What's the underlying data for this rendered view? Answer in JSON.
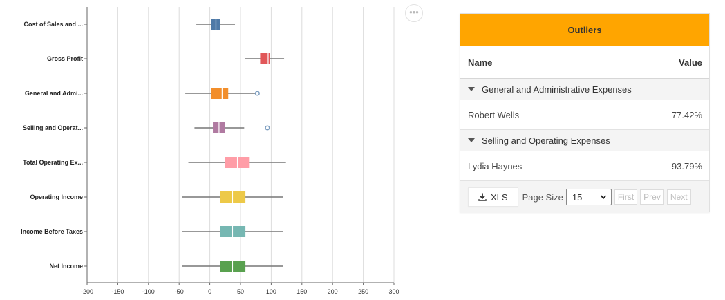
{
  "chart_data": {
    "type": "boxplot",
    "orientation": "horizontal",
    "xlim": [
      -200,
      300
    ],
    "x_ticks": [
      -200,
      -150,
      -100,
      -50,
      0,
      50,
      100,
      150,
      200,
      250,
      300
    ],
    "grid": true,
    "categories": [
      {
        "label": "Cost of Sales and ...",
        "min": -22,
        "q1": 2,
        "median": 10,
        "q3": 17,
        "max": 41,
        "color": "#4e79a7",
        "outliers": []
      },
      {
        "label": "Gross Profit",
        "min": 57,
        "q1": 82,
        "median": 95,
        "q3": 98,
        "max": 121,
        "color": "#e15759",
        "outliers": []
      },
      {
        "label": "General and Admi...",
        "min": -40,
        "q1": 2,
        "median": 20,
        "q3": 30,
        "max": 76,
        "color": "#f28e2b",
        "outliers": [
          77.42
        ]
      },
      {
        "label": "Selling and Operat...",
        "min": -25,
        "q1": 5,
        "median": 15,
        "q3": 25,
        "max": 56,
        "color": "#b07aa1",
        "outliers": [
          93.79
        ]
      },
      {
        "label": "Total Operating Ex...",
        "min": -35,
        "q1": 25,
        "median": 45,
        "q3": 65,
        "max": 124,
        "color": "#ff9da7",
        "outliers": []
      },
      {
        "label": "Operating Income",
        "min": -45,
        "q1": 17,
        "median": 37,
        "q3": 58,
        "max": 119,
        "color": "#edc948",
        "outliers": []
      },
      {
        "label": "Income Before Taxes",
        "min": -45,
        "q1": 17,
        "median": 37,
        "q3": 58,
        "max": 119,
        "color": "#76b7b2",
        "outliers": []
      },
      {
        "label": "Net Income",
        "min": -45,
        "q1": 17,
        "median": 37,
        "q3": 58,
        "max": 119,
        "color": "#59a14f",
        "outliers": []
      }
    ]
  },
  "more_button_glyph": "•••",
  "outliers_panel": {
    "title": "Outliers",
    "columns": {
      "name": "Name",
      "value": "Value"
    },
    "groups": [
      {
        "group": "General and Administrative Expenses",
        "rows": [
          {
            "name": "Robert Wells",
            "value": "77.42%"
          }
        ]
      },
      {
        "group": "Selling and Operating Expenses",
        "rows": [
          {
            "name": "Lydia Haynes",
            "value": "93.79%"
          }
        ]
      }
    ],
    "pager": {
      "export_label": "XLS",
      "page_size_label": "Page Size",
      "page_size_value": "15",
      "first": "First",
      "prev": "Prev",
      "next": "Next"
    }
  },
  "icons": {
    "export": "download-icon",
    "group_toggle": "caret-down-icon",
    "select": "chevron-down-icon"
  }
}
